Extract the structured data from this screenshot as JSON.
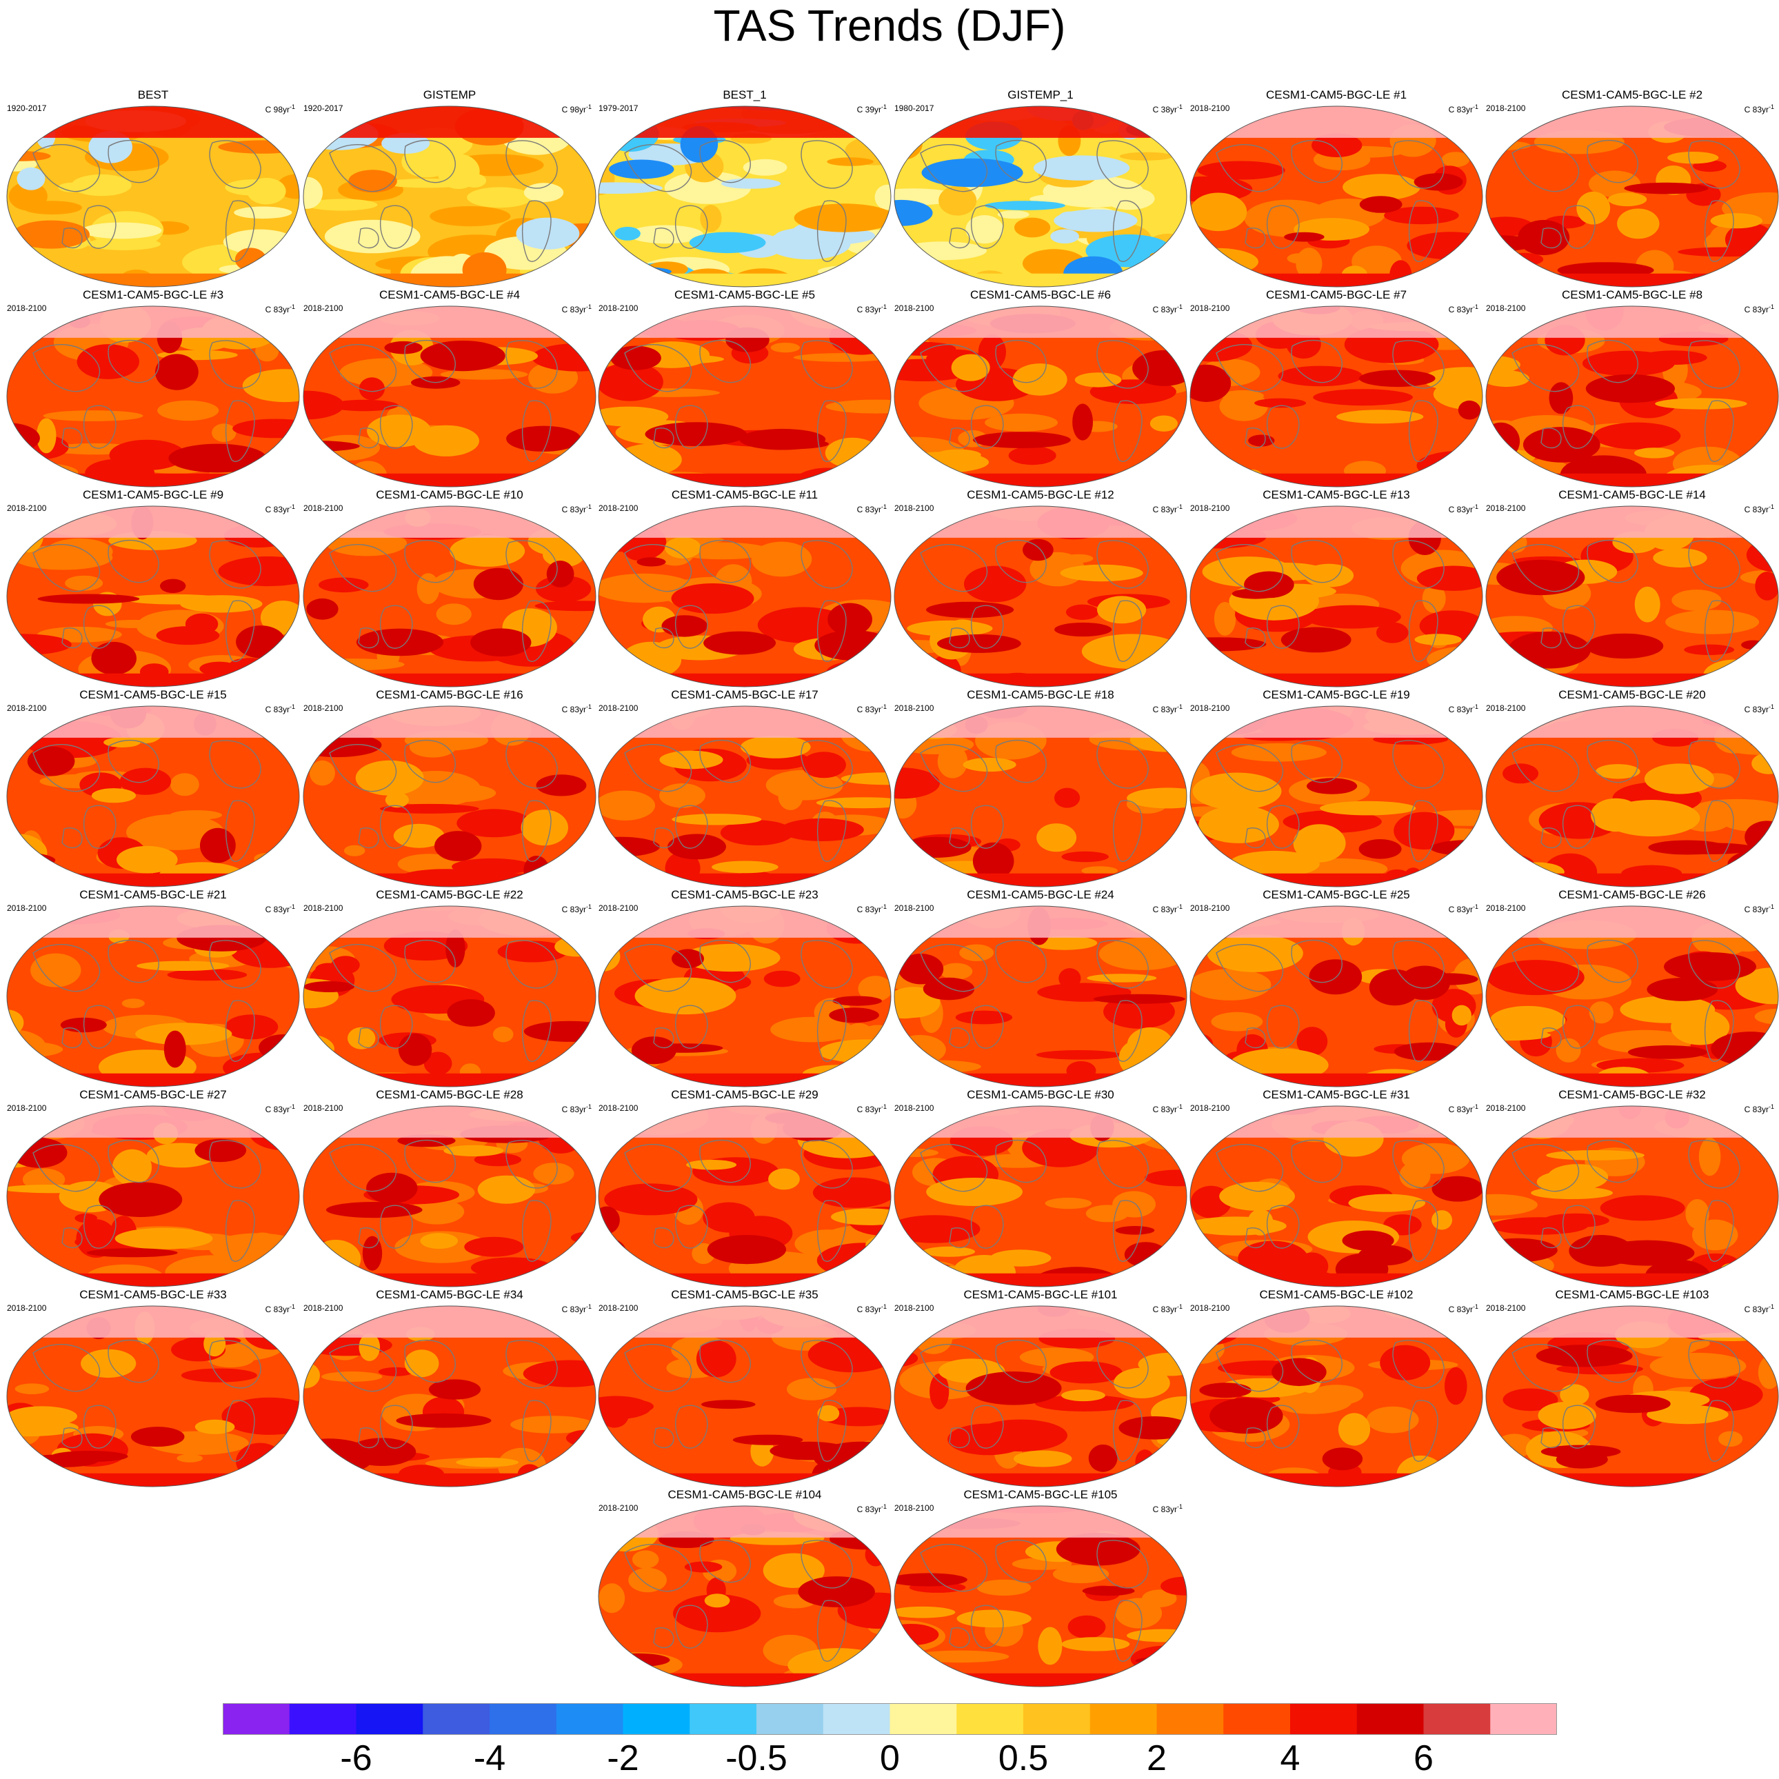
{
  "title": "TAS Trends (DJF)",
  "panels": [
    {
      "title": "BEST",
      "period": "1920-2017",
      "units": "C 98yr",
      "style": "obs_long"
    },
    {
      "title": "GISTEMP",
      "period": "1920-2017",
      "units": "C 98yr",
      "style": "obs_long"
    },
    {
      "title": "BEST_1",
      "period": "1979-2017",
      "units": "C 39yr",
      "style": "obs_short"
    },
    {
      "title": "GISTEMP_1",
      "period": "1980-2017",
      "units": "C 38yr",
      "style": "obs_short"
    },
    {
      "title": "CESM1-CAM5-BGC-LE #1",
      "period": "2018-2100",
      "units": "C 83yr",
      "style": "model"
    },
    {
      "title": "CESM1-CAM5-BGC-LE #2",
      "period": "2018-2100",
      "units": "C 83yr",
      "style": "model"
    },
    {
      "title": "CESM1-CAM5-BGC-LE #3",
      "period": "2018-2100",
      "units": "C 83yr",
      "style": "model"
    },
    {
      "title": "CESM1-CAM5-BGC-LE #4",
      "period": "2018-2100",
      "units": "C 83yr",
      "style": "model"
    },
    {
      "title": "CESM1-CAM5-BGC-LE #5",
      "period": "2018-2100",
      "units": "C 83yr",
      "style": "model"
    },
    {
      "title": "CESM1-CAM5-BGC-LE #6",
      "period": "2018-2100",
      "units": "C 83yr",
      "style": "model"
    },
    {
      "title": "CESM1-CAM5-BGC-LE #7",
      "period": "2018-2100",
      "units": "C 83yr",
      "style": "model"
    },
    {
      "title": "CESM1-CAM5-BGC-LE #8",
      "period": "2018-2100",
      "units": "C 83yr",
      "style": "model"
    },
    {
      "title": "CESM1-CAM5-BGC-LE #9",
      "period": "2018-2100",
      "units": "C 83yr",
      "style": "model"
    },
    {
      "title": "CESM1-CAM5-BGC-LE #10",
      "period": "2018-2100",
      "units": "C 83yr",
      "style": "model"
    },
    {
      "title": "CESM1-CAM5-BGC-LE #11",
      "period": "2018-2100",
      "units": "C 83yr",
      "style": "model"
    },
    {
      "title": "CESM1-CAM5-BGC-LE #12",
      "period": "2018-2100",
      "units": "C 83yr",
      "style": "model"
    },
    {
      "title": "CESM1-CAM5-BGC-LE #13",
      "period": "2018-2100",
      "units": "C 83yr",
      "style": "model"
    },
    {
      "title": "CESM1-CAM5-BGC-LE #14",
      "period": "2018-2100",
      "units": "C 83yr",
      "style": "model"
    },
    {
      "title": "CESM1-CAM5-BGC-LE #15",
      "period": "2018-2100",
      "units": "C 83yr",
      "style": "model"
    },
    {
      "title": "CESM1-CAM5-BGC-LE #16",
      "period": "2018-2100",
      "units": "C 83yr",
      "style": "model"
    },
    {
      "title": "CESM1-CAM5-BGC-LE #17",
      "period": "2018-2100",
      "units": "C 83yr",
      "style": "model"
    },
    {
      "title": "CESM1-CAM5-BGC-LE #18",
      "period": "2018-2100",
      "units": "C 83yr",
      "style": "model"
    },
    {
      "title": "CESM1-CAM5-BGC-LE #19",
      "period": "2018-2100",
      "units": "C 83yr",
      "style": "model"
    },
    {
      "title": "CESM1-CAM5-BGC-LE #20",
      "period": "2018-2100",
      "units": "C 83yr",
      "style": "model"
    },
    {
      "title": "CESM1-CAM5-BGC-LE #21",
      "period": "2018-2100",
      "units": "C 83yr",
      "style": "model"
    },
    {
      "title": "CESM1-CAM5-BGC-LE #22",
      "period": "2018-2100",
      "units": "C 83yr",
      "style": "model"
    },
    {
      "title": "CESM1-CAM5-BGC-LE #23",
      "period": "2018-2100",
      "units": "C 83yr",
      "style": "model"
    },
    {
      "title": "CESM1-CAM5-BGC-LE #24",
      "period": "2018-2100",
      "units": "C 83yr",
      "style": "model"
    },
    {
      "title": "CESM1-CAM5-BGC-LE #25",
      "period": "2018-2100",
      "units": "C 83yr",
      "style": "model"
    },
    {
      "title": "CESM1-CAM5-BGC-LE #26",
      "period": "2018-2100",
      "units": "C 83yr",
      "style": "model"
    },
    {
      "title": "CESM1-CAM5-BGC-LE #27",
      "period": "2018-2100",
      "units": "C 83yr",
      "style": "model"
    },
    {
      "title": "CESM1-CAM5-BGC-LE #28",
      "period": "2018-2100",
      "units": "C 83yr",
      "style": "model"
    },
    {
      "title": "CESM1-CAM5-BGC-LE #29",
      "period": "2018-2100",
      "units": "C 83yr",
      "style": "model"
    },
    {
      "title": "CESM1-CAM5-BGC-LE #30",
      "period": "2018-2100",
      "units": "C 83yr",
      "style": "model"
    },
    {
      "title": "CESM1-CAM5-BGC-LE #31",
      "period": "2018-2100",
      "units": "C 83yr",
      "style": "model"
    },
    {
      "title": "CESM1-CAM5-BGC-LE #32",
      "period": "2018-2100",
      "units": "C 83yr",
      "style": "model"
    },
    {
      "title": "CESM1-CAM5-BGC-LE #33",
      "period": "2018-2100",
      "units": "C 83yr",
      "style": "model"
    },
    {
      "title": "CESM1-CAM5-BGC-LE #34",
      "period": "2018-2100",
      "units": "C 83yr",
      "style": "model"
    },
    {
      "title": "CESM1-CAM5-BGC-LE #35",
      "period": "2018-2100",
      "units": "C 83yr",
      "style": "model"
    },
    {
      "title": "CESM1-CAM5-BGC-LE #101",
      "period": "2018-2100",
      "units": "C 83yr",
      "style": "model"
    },
    {
      "title": "CESM1-CAM5-BGC-LE #102",
      "period": "2018-2100",
      "units": "C 83yr",
      "style": "model"
    },
    {
      "title": "CESM1-CAM5-BGC-LE #103",
      "period": "2018-2100",
      "units": "C 83yr",
      "style": "model"
    },
    {
      "title": "CESM1-CAM5-BGC-LE #104",
      "period": "2018-2100",
      "units": "C 83yr",
      "style": "model"
    },
    {
      "title": "CESM1-CAM5-BGC-LE #105",
      "period": "2018-2100",
      "units": "C 83yr",
      "style": "model"
    }
  ],
  "units_exponent": "-1",
  "colorbar": {
    "colors": [
      "#8a22f0",
      "#3b10ff",
      "#1515f5",
      "#3d5ce0",
      "#2e6fea",
      "#1e8cf5",
      "#00b0ff",
      "#40c8fa",
      "#96d0ee",
      "#bee2f6",
      "#fff59a",
      "#ffe03c",
      "#ffc21e",
      "#ffa000",
      "#ff7a00",
      "#ff4a00",
      "#f21000",
      "#d40000",
      "#d83c3c",
      "#ffb0b8"
    ],
    "labels": [
      "-6",
      "-4",
      "-2",
      "-0.5",
      "0",
      "0.5",
      "2",
      "4",
      "6"
    ]
  }
}
